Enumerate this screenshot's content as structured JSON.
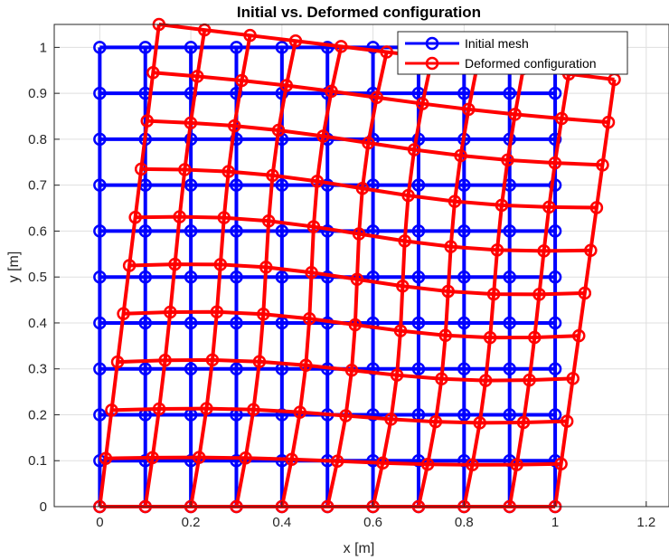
{
  "chart_data": {
    "type": "line",
    "title": "Initial vs. Deformed configuration",
    "xlabel": "x [m]",
    "ylabel": "y [m]",
    "xlim": [
      -0.1,
      1.25
    ],
    "ylim": [
      0,
      1.05
    ],
    "xticks": [
      0,
      0.2,
      0.4,
      0.6,
      0.8,
      1,
      1.2
    ],
    "xtick_labels": [
      "0",
      "0.2",
      "0.4",
      "0.6",
      "0.8",
      "1",
      "1.2"
    ],
    "yticks": [
      0,
      0.1,
      0.2,
      0.3,
      0.4,
      0.5,
      0.6,
      0.7,
      0.8,
      0.9,
      1
    ],
    "ytick_labels": [
      "0",
      "0.1",
      "0.2",
      "0.3",
      "0.4",
      "0.5",
      "0.6",
      "0.7",
      "0.8",
      "0.9",
      "1"
    ],
    "grid": true,
    "legend_position": "top-right",
    "grid_size": 11,
    "series": [
      {
        "name": "Initial mesh",
        "color": "#0000ff",
        "mesh_model": "uniform",
        "x_range": [
          0,
          1
        ],
        "y_range": [
          0,
          1
        ]
      },
      {
        "name": "Deformed configuration",
        "color": "#ff0000",
        "mesh_model": "bilinear-corners",
        "corners": {
          "bottom_left": [
            0,
            0
          ],
          "bottom_right": [
            1,
            0
          ],
          "top_left": [
            0.13,
            1.05
          ],
          "top_right": [
            1.13,
            0.93
          ]
        },
        "wave_amplitude": 0.015
      }
    ]
  }
}
